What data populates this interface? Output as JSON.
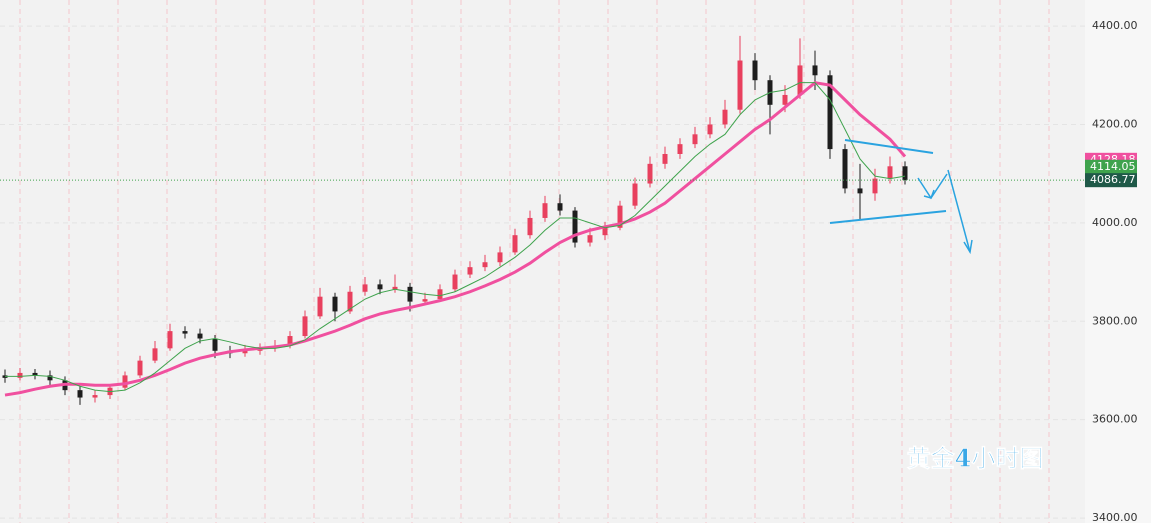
{
  "chart_data": {
    "type": "candlestick",
    "annotation": "黄金4小时图",
    "up_color": "#e8405e",
    "down_color": "#1e1e1e",
    "ylim": [
      3390,
      4453
    ],
    "yticks": [
      {
        "value": 3400,
        "label": "3400.00"
      },
      {
        "value": 3600,
        "label": "3600.00"
      },
      {
        "value": 3800,
        "label": "3800.00"
      },
      {
        "value": 4000,
        "label": "4000.00"
      },
      {
        "value": 4200,
        "label": "4200.00"
      },
      {
        "value": 4400,
        "label": "4400.00"
      }
    ],
    "grid": true,
    "open": [
      3690,
      3685,
      3695,
      3690,
      3680,
      3660,
      3645,
      3650,
      3665,
      3690,
      3720,
      3745,
      3780,
      3775,
      3765,
      3740,
      3735,
      3740,
      3745,
      3750,
      3770,
      3810,
      3850,
      3820,
      3860,
      3875,
      3865,
      3870,
      3840,
      3845,
      3865,
      3895,
      3910,
      3920,
      3940,
      3975,
      4010,
      4040,
      4025,
      3960,
      3975,
      3990,
      4035,
      4080,
      4120,
      4140,
      4160,
      4180,
      4200,
      4230,
      4330,
      4290,
      4240,
      4260,
      4320,
      4300,
      4150,
      4070,
      4060,
      4090,
      4115
    ],
    "high": [
      3702,
      3705,
      3703,
      3700,
      3688,
      3668,
      3660,
      3672,
      3698,
      3730,
      3760,
      3795,
      3790,
      3785,
      3772,
      3750,
      3752,
      3755,
      3762,
      3780,
      3822,
      3868,
      3858,
      3872,
      3890,
      3885,
      3895,
      3878,
      3858,
      3875,
      3905,
      3922,
      3935,
      3952,
      3988,
      4025,
      4055,
      4058,
      4032,
      3990,
      4002,
      4045,
      4092,
      4135,
      4155,
      4172,
      4195,
      4215,
      4250,
      4380,
      4345,
      4300,
      4280,
      4375,
      4350,
      4310,
      4160,
      4120,
      4110,
      4135,
      4125
    ],
    "low": [
      3675,
      3680,
      3682,
      3668,
      3650,
      3630,
      3635,
      3642,
      3660,
      3685,
      3715,
      3740,
      3765,
      3755,
      3725,
      3725,
      3728,
      3732,
      3738,
      3745,
      3765,
      3805,
      3800,
      3815,
      3852,
      3855,
      3858,
      3820,
      3832,
      3840,
      3860,
      3888,
      3902,
      3912,
      3935,
      3968,
      4002,
      4015,
      3950,
      3952,
      3965,
      3985,
      4028,
      4072,
      4110,
      4130,
      4152,
      4172,
      4192,
      4222,
      4270,
      4180,
      4225,
      4252,
      4270,
      4130,
      4060,
      4005,
      4045,
      4080,
      4078
    ],
    "close": [
      3685,
      3695,
      3690,
      3680,
      3660,
      3645,
      3650,
      3665,
      3690,
      3720,
      3745,
      3780,
      3775,
      3765,
      3740,
      3735,
      3740,
      3745,
      3750,
      3770,
      3810,
      3850,
      3820,
      3860,
      3875,
      3865,
      3870,
      3840,
      3845,
      3865,
      3895,
      3910,
      3920,
      3940,
      3975,
      4010,
      4040,
      4025,
      3960,
      3975,
      3990,
      4035,
      4080,
      4120,
      4140,
      4160,
      4180,
      4200,
      4230,
      4330,
      4290,
      4240,
      4260,
      4320,
      4300,
      4150,
      4070,
      4060,
      4090,
      4115,
      4087
    ],
    "ma_fast": {
      "color": "#3fa34d",
      "values": [
        3688,
        3688,
        3690,
        3688,
        3680,
        3668,
        3660,
        3657,
        3660,
        3675,
        3695,
        3720,
        3745,
        3760,
        3765,
        3758,
        3750,
        3745,
        3745,
        3750,
        3762,
        3785,
        3805,
        3825,
        3845,
        3858,
        3865,
        3860,
        3855,
        3852,
        3860,
        3875,
        3890,
        3910,
        3930,
        3955,
        3985,
        4010,
        4010,
        4000,
        3990,
        3995,
        4015,
        4045,
        4075,
        4105,
        4135,
        4160,
        4180,
        4220,
        4250,
        4265,
        4270,
        4285,
        4285,
        4250,
        4190,
        4130,
        4095,
        4090,
        4095
      ]
    },
    "ma_slow": {
      "color": "#f0509f",
      "values": [
        3650,
        3655,
        3662,
        3668,
        3672,
        3672,
        3670,
        3670,
        3673,
        3680,
        3690,
        3702,
        3715,
        3725,
        3732,
        3738,
        3742,
        3745,
        3748,
        3752,
        3760,
        3770,
        3780,
        3792,
        3805,
        3815,
        3822,
        3828,
        3835,
        3842,
        3850,
        3860,
        3872,
        3885,
        3900,
        3918,
        3940,
        3960,
        3975,
        3985,
        3992,
        3998,
        4008,
        4022,
        4040,
        4065,
        4090,
        4115,
        4140,
        4165,
        4190,
        4210,
        4235,
        4260,
        4285,
        4280,
        4250,
        4220,
        4195,
        4170,
        4135
      ]
    },
    "price_tags": [
      {
        "value": 4128.18,
        "color": "#f0509f"
      },
      {
        "value": 4114.05,
        "color": "#3fa34d"
      },
      {
        "value": 4086.77,
        "color": "#1f5948"
      }
    ]
  }
}
